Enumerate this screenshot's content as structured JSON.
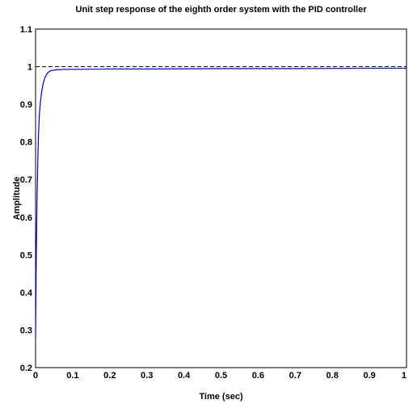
{
  "chart_data": {
    "type": "line",
    "title": "Unit step response of the eighth order system with the PID controller",
    "xlabel": "Time (sec)",
    "ylabel": "Amplitude",
    "xlim": [
      0,
      1
    ],
    "ylim": [
      0.2,
      1.1
    ],
    "xticks": [
      "0",
      "0.1",
      "0.2",
      "0.3",
      "0.4",
      "0.5",
      "0.6",
      "0.7",
      "0.8",
      "0.9",
      "1"
    ],
    "yticks": [
      "0.2",
      "0.3",
      "0.4",
      "0.5",
      "0.6",
      "0.7",
      "0.8",
      "0.9",
      "1",
      "1.1"
    ],
    "grid": false,
    "reference_line": {
      "y": 1,
      "style": "dashed",
      "color": "#000000"
    },
    "series": [
      {
        "color": "#0000cc",
        "x": [
          0,
          0.002,
          0.004,
          0.006,
          0.008,
          0.01,
          0.013,
          0.016,
          0.02,
          0.025,
          0.03,
          0.035,
          0.04,
          0.05,
          0.06,
          0.08,
          0.1,
          0.2,
          0.3,
          0.5,
          0.7,
          0.9,
          1.0
        ],
        "y": [
          0.28,
          0.5,
          0.65,
          0.75,
          0.82,
          0.87,
          0.905,
          0.93,
          0.953,
          0.97,
          0.98,
          0.986,
          0.989,
          0.991,
          0.992,
          0.993,
          0.993,
          0.994,
          0.994,
          0.995,
          0.995,
          0.996,
          0.996
        ]
      }
    ]
  }
}
